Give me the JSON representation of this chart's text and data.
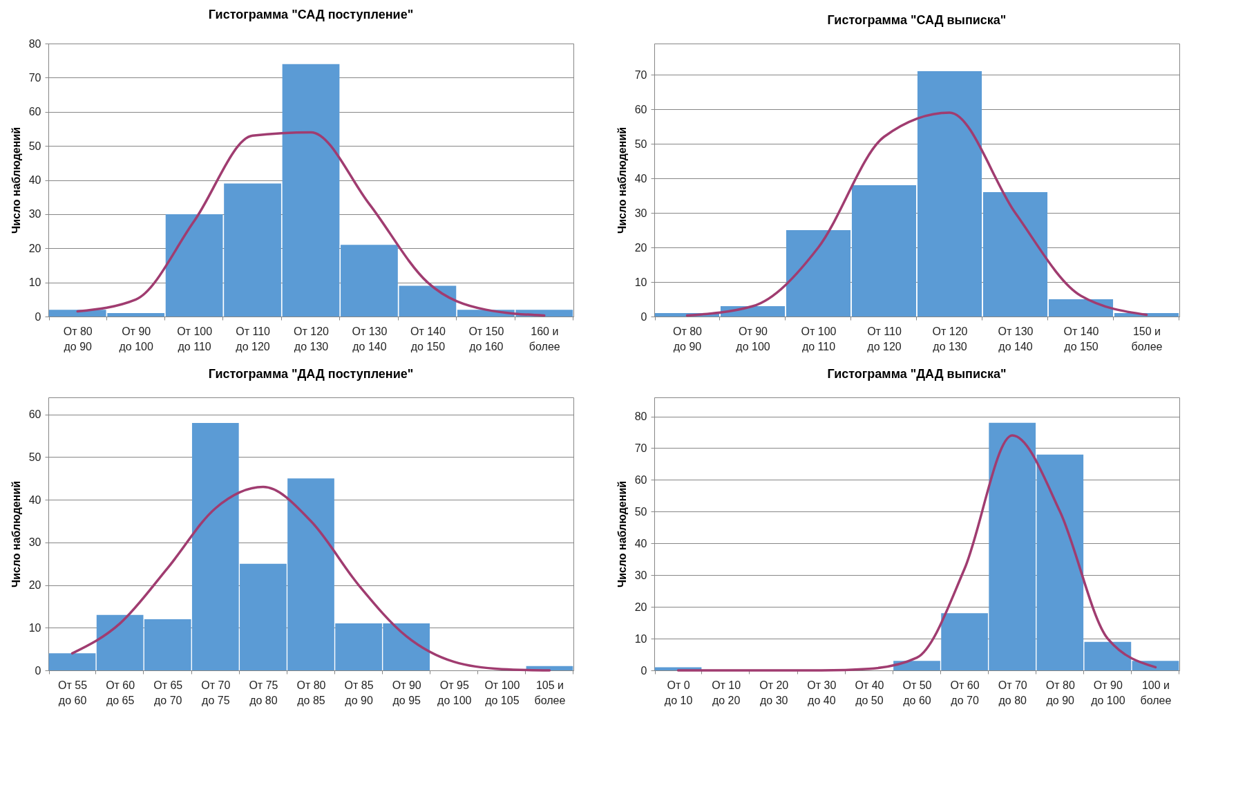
{
  "chart_data": [
    {
      "type": "bar",
      "title": "Гистограмма \"САД поступление\"",
      "ylabel": "Число наблюдений",
      "categories": [
        "От 80 до 90",
        "От 90 до 100",
        "От 100 до 110",
        "От 110 до 120",
        "От 120 до 130",
        "От 130 до 140",
        "От 140 до 150",
        "От 150 до 160",
        "160 и более"
      ],
      "ylim": [
        0,
        80
      ],
      "yticks": [
        0,
        10,
        20,
        30,
        40,
        50,
        60,
        70,
        80
      ],
      "grid": "y",
      "series": [
        {
          "color": "#5b9bd5",
          "values": [
            2,
            1,
            30,
            39,
            74,
            21,
            9,
            2,
            2
          ]
        },
        {
          "type": "line",
          "color": "#a03c70",
          "values": [
            1.5,
            5,
            28,
            53,
            54,
            33,
            10,
            2,
            0.3
          ]
        }
      ]
    },
    {
      "type": "bar",
      "title": "Гистограмма \"САД выписка\"",
      "ylabel": "Число наблюдений",
      "categories": [
        "От 80 до 90",
        "От 90 до 100",
        "От 100 до 110",
        "От 110 до 120",
        "От 120 до 130",
        "От 130 до 140",
        "От 140 до 150",
        "150 и более"
      ],
      "ylim": [
        0,
        79
      ],
      "yticks": [
        0,
        10,
        20,
        30,
        40,
        50,
        60,
        70
      ],
      "grid": "y",
      "series": [
        {
          "color": "#5b9bd5",
          "values": [
            1,
            3,
            25,
            38,
            71,
            36,
            5,
            1
          ]
        },
        {
          "type": "line",
          "color": "#a03c70",
          "values": [
            0.3,
            3,
            20,
            52,
            59,
            30,
            6,
            0.5
          ]
        }
      ]
    },
    {
      "type": "bar",
      "title": "Гистограмма \"ДАД поступление\"",
      "ylabel": "Число наблюдений",
      "categories": [
        "От 55 до 60",
        "От 60 до 65",
        "От 65 до 70",
        "От 70 до 75",
        "От 75 до 80",
        "От 80 до 85",
        "От 85 до 90",
        "От 90 до 95",
        "От 95 до 100",
        "От 100 до 105",
        "105 и более"
      ],
      "ylim": [
        0,
        64
      ],
      "yticks": [
        0,
        10,
        20,
        30,
        40,
        50,
        60
      ],
      "grid": "y",
      "series": [
        {
          "color": "#5b9bd5",
          "values": [
            4,
            13,
            12,
            58,
            25,
            45,
            11,
            11,
            0,
            0,
            1
          ]
        },
        {
          "type": "line",
          "color": "#a03c70",
          "values": [
            4,
            11,
            24,
            38,
            43,
            35,
            20,
            8,
            2,
            0.3,
            0
          ]
        }
      ]
    },
    {
      "type": "bar",
      "title": "Гистограмма \"ДАД выписка\"",
      "ylabel": "Число наблюдений",
      "categories": [
        "От 0 до 10",
        "От 10 до 20",
        "От 20 до 30",
        "От 30 до 40",
        "От 40 до 50",
        "От 50 до 60",
        "От 60 до 70",
        "От 70 до 80",
        "От 80 до 90",
        "От 90 до 100",
        "100 и более"
      ],
      "ylim": [
        0,
        86
      ],
      "yticks": [
        0,
        10,
        20,
        30,
        40,
        50,
        60,
        70,
        80
      ],
      "grid": "y",
      "series": [
        {
          "color": "#5b9bd5",
          "values": [
            1,
            0,
            0,
            0,
            0,
            3,
            18,
            78,
            68,
            9,
            3
          ]
        },
        {
          "type": "line",
          "color": "#a03c70",
          "values": [
            0,
            0,
            0,
            0,
            0.5,
            4,
            32,
            74,
            50,
            10,
            1
          ]
        }
      ]
    }
  ]
}
